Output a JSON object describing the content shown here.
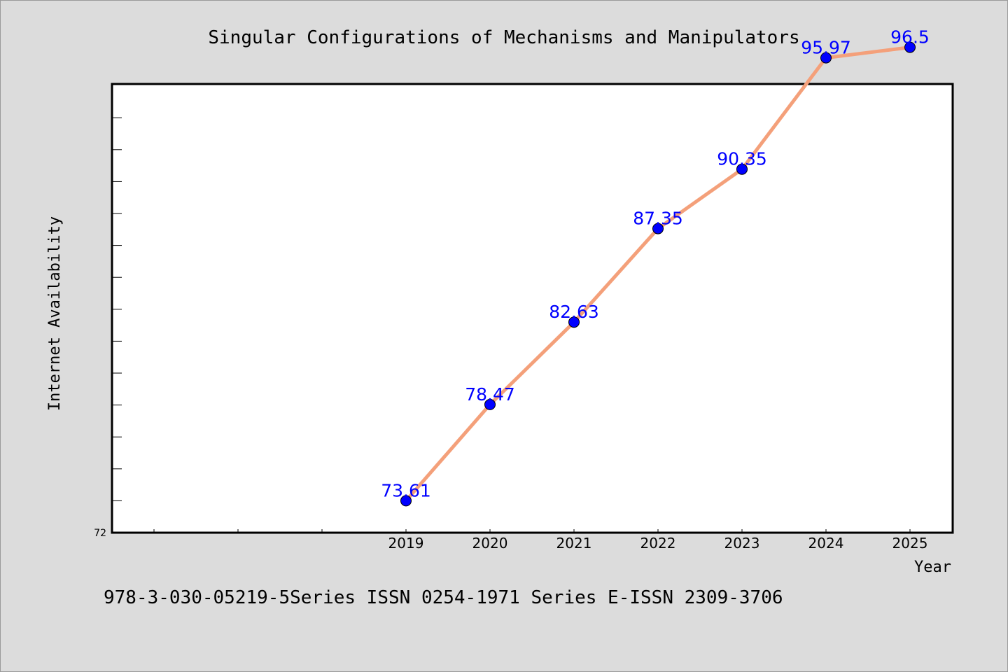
{
  "chart_data": {
    "type": "line",
    "title": "Singular Configurations of Mechanisms and Manipulators",
    "xlabel": "Year",
    "ylabel": "Internet Availability",
    "x": [
      "2019",
      "2020",
      "2021",
      "2022",
      "2023",
      "2024",
      "2025"
    ],
    "series": [
      {
        "values": [
          73.61,
          78.47,
          82.63,
          87.35,
          90.35,
          95.97,
          96.5
        ],
        "labels": [
          "73.61",
          "78.47",
          "82.63",
          "87.35",
          "90.35",
          "95.97",
          "96.5"
        ],
        "line_color": "#f4a07a",
        "marker_color": "#0000ff"
      }
    ],
    "ylim": [
      72,
      100
    ],
    "ymin_label": "72",
    "grid": false,
    "legend": "none"
  },
  "footnote": "978-3-030-05219-5Series ISSN 0254-1971 Series E-ISSN 2309-3706",
  "colors": {
    "background": "#dcdcdc",
    "plot_background": "#ffffff",
    "data_label": "#0000ff"
  }
}
